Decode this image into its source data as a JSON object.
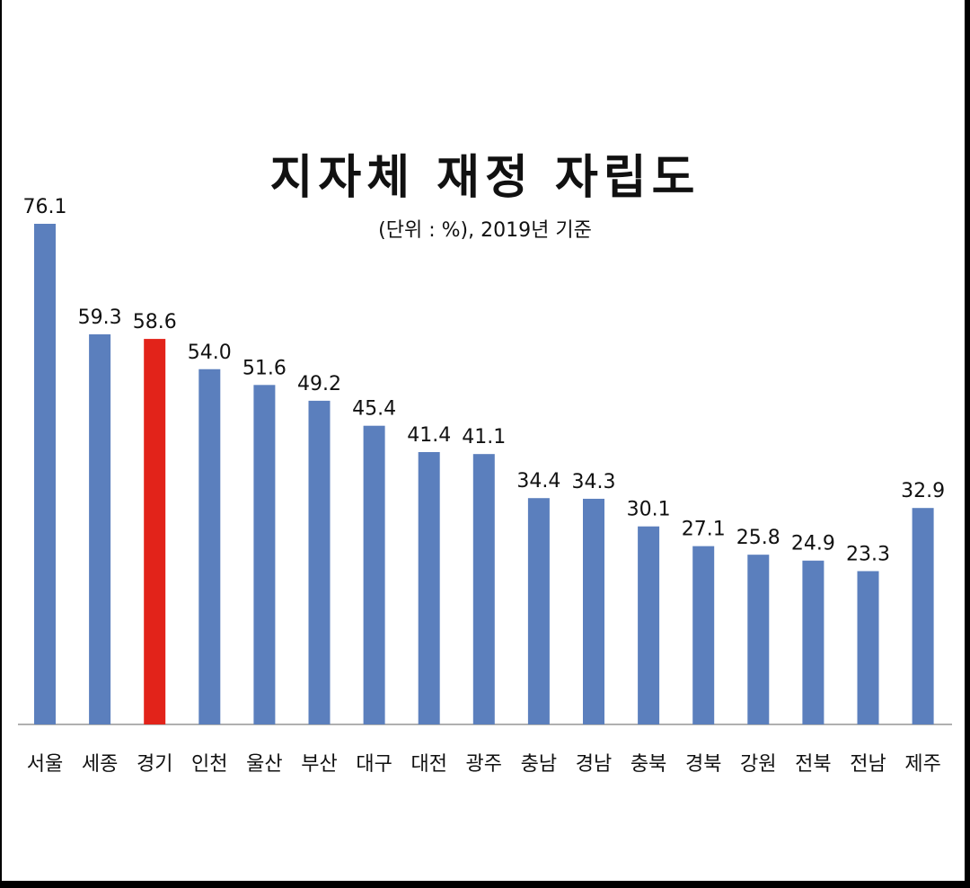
{
  "chart_data": {
    "type": "bar",
    "title": "지자체 재정 자립도",
    "subtitle": "(단위 : %), 2019년 기준",
    "categories": [
      "서울",
      "세종",
      "경기",
      "인천",
      "울산",
      "부산",
      "대구",
      "대전",
      "광주",
      "충남",
      "경남",
      "충북",
      "경북",
      "강원",
      "전북",
      "전남",
      "제주"
    ],
    "values": [
      76.1,
      59.3,
      58.6,
      54.0,
      51.6,
      49.2,
      45.4,
      41.4,
      41.1,
      34.4,
      34.3,
      30.1,
      27.1,
      25.8,
      24.9,
      23.3,
      32.9
    ],
    "value_labels": [
      "76.1",
      "59.3",
      "58.6",
      "54.0",
      "51.6",
      "49.2",
      "45.4",
      "41.4",
      "41.1",
      "34.4",
      "34.3",
      "30.1",
      "27.1",
      "25.8",
      "24.9",
      "23.3",
      "32.9"
    ],
    "highlight_index": 2,
    "colors": {
      "bar": "#5b7fbd",
      "highlight": "#e2231a",
      "axis": "#b0b0b0"
    },
    "ylim": [
      0,
      80
    ],
    "grid": false,
    "legend": "none"
  }
}
